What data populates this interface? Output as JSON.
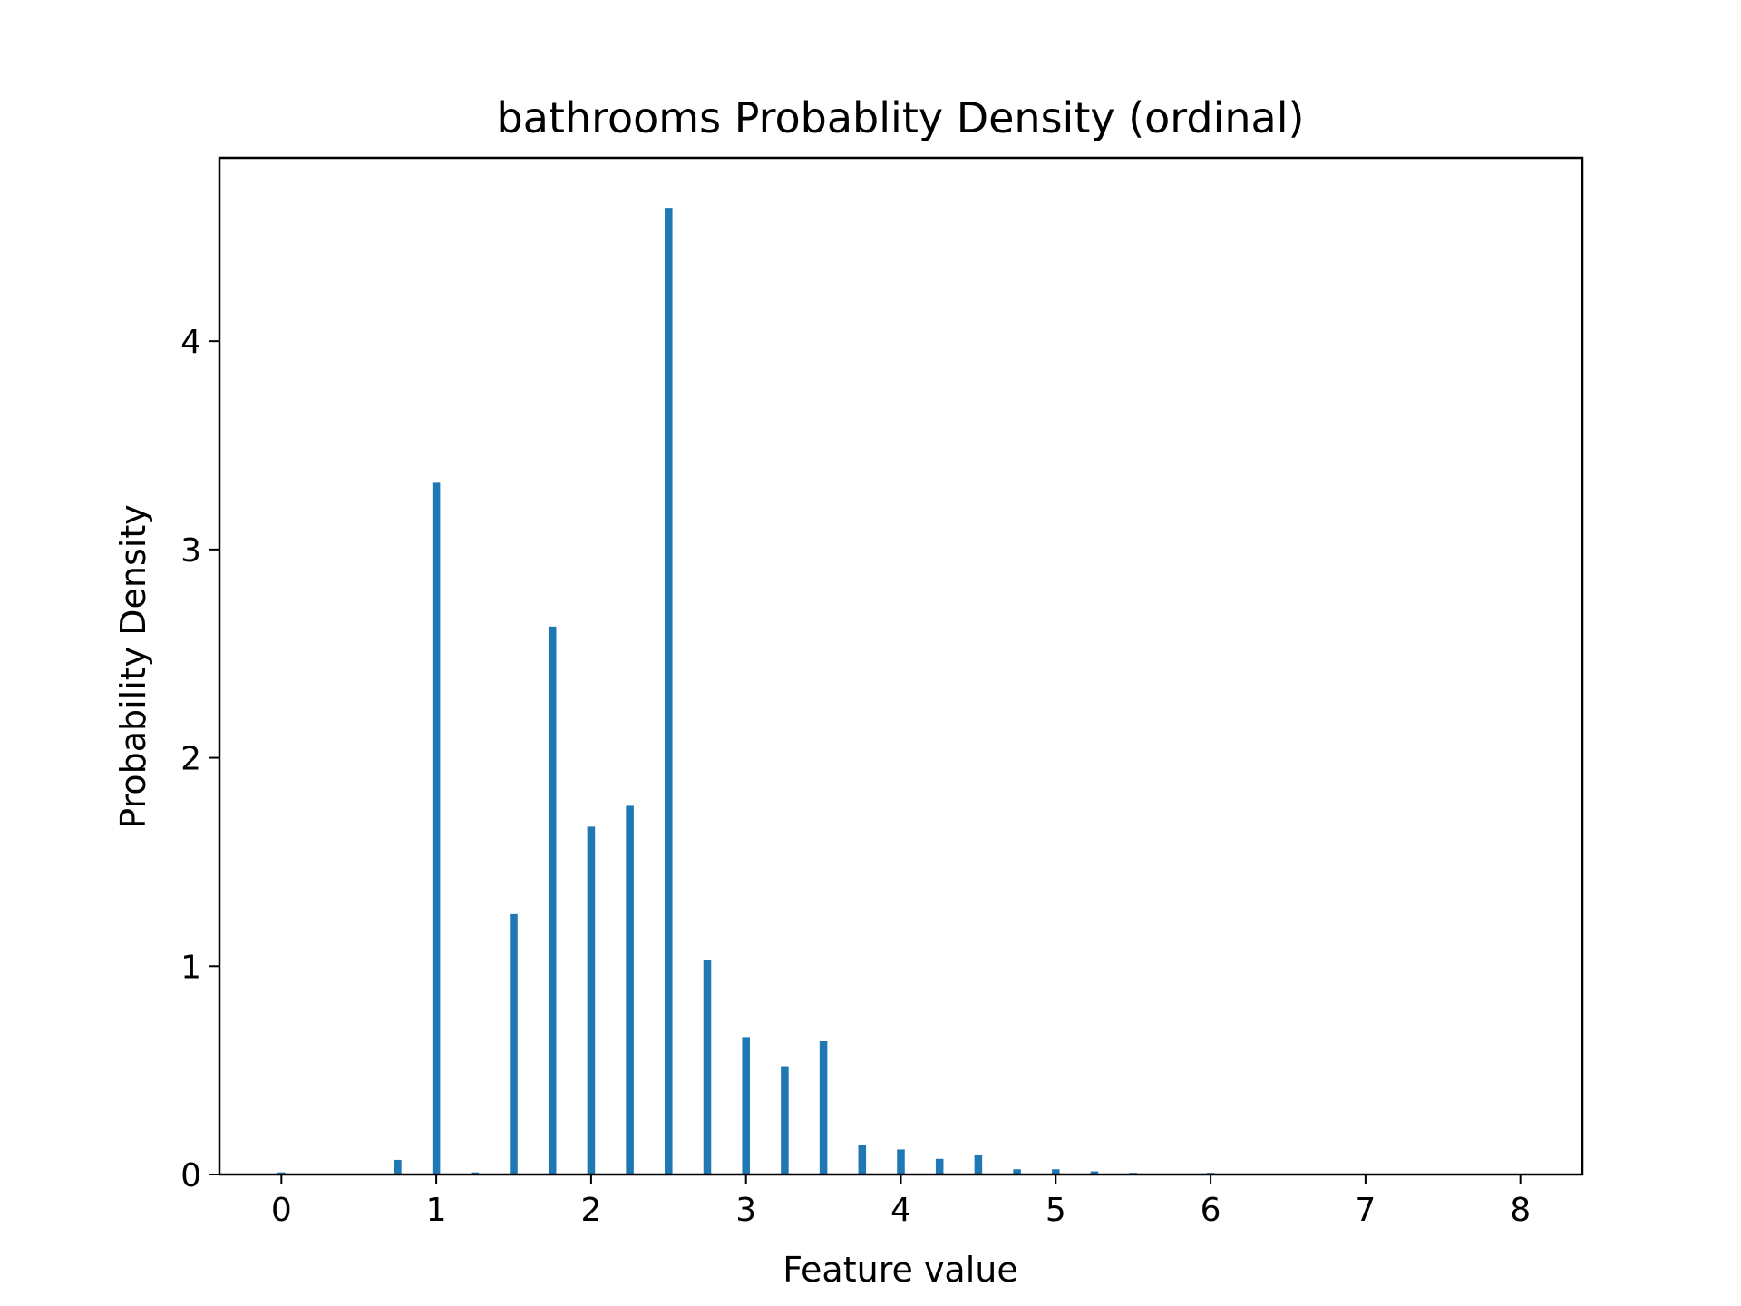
{
  "chart_data": {
    "type": "bar",
    "title": "bathrooms Probablity Density (ordinal)",
    "xlabel": "Feature value",
    "ylabel": "Probability Density",
    "xlim": [
      -0.4,
      8.4
    ],
    "ylim": [
      0,
      4.88
    ],
    "xticks": [
      "0",
      "1",
      "2",
      "3",
      "4",
      "5",
      "6",
      "7",
      "8"
    ],
    "yticks": [
      "0",
      "1",
      "2",
      "3",
      "4"
    ],
    "bar_width": 0.05,
    "color": "#1f77b4",
    "grid": false,
    "legend": "none",
    "x": [
      0.0,
      0.75,
      1.0,
      1.25,
      1.5,
      1.75,
      2.0,
      2.25,
      2.5,
      2.75,
      3.0,
      3.25,
      3.5,
      3.75,
      4.0,
      4.25,
      4.5,
      4.75,
      5.0,
      5.25,
      5.5,
      6.0
    ],
    "values": [
      0.01,
      0.07,
      3.32,
      0.01,
      1.25,
      2.63,
      1.67,
      1.77,
      4.64,
      1.03,
      0.66,
      0.52,
      0.64,
      0.14,
      0.12,
      0.075,
      0.095,
      0.025,
      0.025,
      0.015,
      0.008,
      0.008
    ]
  }
}
